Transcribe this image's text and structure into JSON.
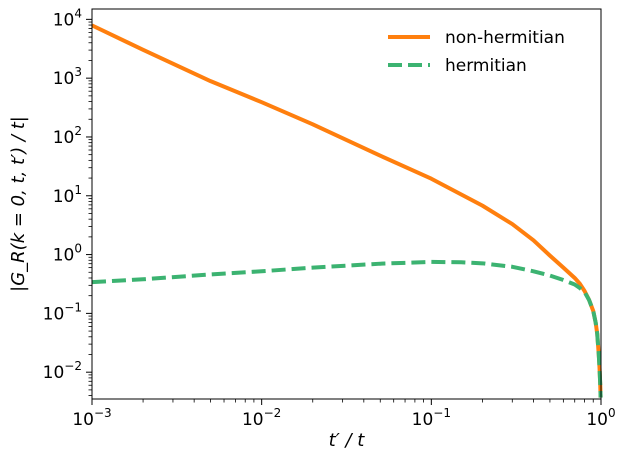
{
  "chart_data": {
    "type": "line",
    "xscale": "log",
    "yscale": "log",
    "xlim": [
      0.001,
      1
    ],
    "ylim": [
      0.0035,
      15000
    ],
    "xlabel": "t′ / t",
    "ylabel": "|G_R(k = 0, t, t′) / t|",
    "x_ticks": [
      {
        "value": 0.001,
        "mant": "10",
        "exp": "−3"
      },
      {
        "value": 0.01,
        "mant": "10",
        "exp": "−2"
      },
      {
        "value": 0.1,
        "mant": "10",
        "exp": "−1"
      },
      {
        "value": 1,
        "mant": "10",
        "exp": "0"
      }
    ],
    "y_ticks": [
      {
        "value": 0.01,
        "mant": "10",
        "exp": "−2"
      },
      {
        "value": 0.1,
        "mant": "10",
        "exp": "−1"
      },
      {
        "value": 1,
        "mant": "10",
        "exp": "0"
      },
      {
        "value": 10,
        "mant": "10",
        "exp": "1"
      },
      {
        "value": 100,
        "mant": "10",
        "exp": "2"
      },
      {
        "value": 1000,
        "mant": "10",
        "exp": "3"
      },
      {
        "value": 10000,
        "mant": "10",
        "exp": "4"
      }
    ],
    "legend_position": "upper-right",
    "grid": false,
    "series": [
      {
        "name": "non-hermitian",
        "color": "#ff7f0e",
        "dash": "solid",
        "points": [
          [
            0.001,
            7900
          ],
          [
            0.002,
            3030
          ],
          [
            0.005,
            890
          ],
          [
            0.01,
            390
          ],
          [
            0.02,
            164
          ],
          [
            0.05,
            48
          ],
          [
            0.1,
            19.5
          ],
          [
            0.2,
            6.8
          ],
          [
            0.3,
            3.3
          ],
          [
            0.4,
            1.75
          ],
          [
            0.5,
            0.96
          ],
          [
            0.6,
            0.6
          ],
          [
            0.7,
            0.4
          ],
          [
            0.75,
            0.32
          ],
          [
            0.8,
            0.24
          ],
          [
            0.85,
            0.17
          ],
          [
            0.9,
            0.11
          ],
          [
            0.93,
            0.07
          ],
          [
            0.95,
            0.045
          ],
          [
            0.97,
            0.02
          ],
          [
            0.98,
            0.012
          ],
          [
            0.99,
            0.006
          ],
          [
            0.995,
            0.0037
          ]
        ]
      },
      {
        "name": "hermitian",
        "color": "#3cb371",
        "dash": "dashed",
        "points": [
          [
            0.001,
            0.34
          ],
          [
            0.002,
            0.38
          ],
          [
            0.005,
            0.46
          ],
          [
            0.01,
            0.52
          ],
          [
            0.02,
            0.6
          ],
          [
            0.05,
            0.7
          ],
          [
            0.1,
            0.75
          ],
          [
            0.15,
            0.74
          ],
          [
            0.2,
            0.71
          ],
          [
            0.3,
            0.62
          ],
          [
            0.4,
            0.52
          ],
          [
            0.5,
            0.44
          ],
          [
            0.6,
            0.37
          ],
          [
            0.7,
            0.31
          ],
          [
            0.75,
            0.27
          ],
          [
            0.8,
            0.23
          ],
          [
            0.85,
            0.17
          ],
          [
            0.9,
            0.11
          ],
          [
            0.93,
            0.07
          ],
          [
            0.95,
            0.045
          ],
          [
            0.97,
            0.02
          ],
          [
            0.98,
            0.012
          ],
          [
            0.99,
            0.006
          ],
          [
            0.995,
            0.0037
          ]
        ]
      }
    ]
  }
}
